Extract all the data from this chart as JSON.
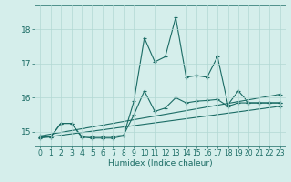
{
  "xlabel": "Humidex (Indice chaleur)",
  "xlim": [
    -0.5,
    23.5
  ],
  "ylim": [
    14.6,
    18.7
  ],
  "background_color": "#d5eeeb",
  "grid_color": "#b2d8d4",
  "line_color": "#1a6b64",
  "xticks": [
    0,
    1,
    2,
    3,
    4,
    5,
    6,
    7,
    8,
    9,
    10,
    11,
    12,
    13,
    14,
    15,
    16,
    17,
    18,
    19,
    20,
    21,
    22,
    23
  ],
  "yticks": [
    15,
    16,
    17,
    18
  ],
  "series": [
    {
      "x": [
        0,
        1,
        2,
        3,
        4,
        5,
        6,
        7,
        8,
        9,
        10,
        11,
        12,
        13,
        14,
        15,
        16,
        17,
        18,
        19,
        20,
        21,
        22,
        23
      ],
      "y": [
        14.85,
        14.85,
        15.25,
        15.25,
        14.85,
        14.82,
        14.82,
        14.82,
        14.88,
        15.9,
        17.75,
        17.05,
        17.2,
        18.35,
        16.6,
        16.65,
        16.6,
        17.2,
        15.8,
        16.2,
        15.85,
        15.85,
        15.85,
        15.85
      ]
    },
    {
      "x": [
        0,
        1,
        2,
        3,
        4,
        5,
        6,
        7,
        8,
        9,
        10,
        11,
        12,
        13,
        14,
        15,
        16,
        17,
        18,
        19,
        20,
        21,
        22,
        23
      ],
      "y": [
        14.85,
        14.85,
        15.25,
        15.25,
        14.87,
        14.87,
        14.87,
        14.87,
        14.9,
        15.5,
        16.2,
        15.6,
        15.7,
        16.0,
        15.85,
        15.9,
        15.92,
        15.95,
        15.75,
        15.85,
        15.85,
        15.85,
        15.85,
        15.85
      ]
    },
    {
      "x": [
        0,
        23
      ],
      "y": [
        14.82,
        15.75
      ]
    },
    {
      "x": [
        0,
        23
      ],
      "y": [
        14.88,
        16.1
      ]
    }
  ]
}
